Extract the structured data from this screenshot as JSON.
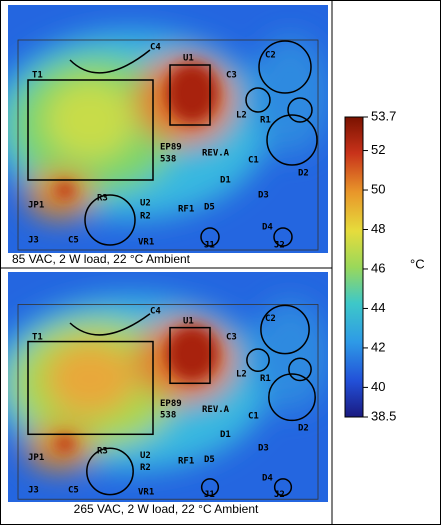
{
  "images": [
    {
      "caption": "85 VAC, 2 W load, 22 °C Ambient"
    },
    {
      "caption": "265 VAC, 2 W load, 22 °C Ambient"
    }
  ],
  "board_labels": [
    "T1",
    "C4",
    "U1",
    "C2",
    "C3",
    "L2",
    "R1",
    "EP89",
    "538",
    "REV.A",
    "C1",
    "D1",
    "D2",
    "D3",
    "D4",
    "D5",
    "RF1",
    "U2",
    "R2",
    "R3",
    "JP1",
    "J3",
    "C5",
    "VR1",
    "J1",
    "J2"
  ],
  "colorbar": {
    "unit": "°C",
    "lim": [
      38.5,
      53.7
    ],
    "ticks": [
      53.7,
      52,
      50,
      48,
      46,
      44,
      42,
      40,
      38.5
    ]
  }
}
